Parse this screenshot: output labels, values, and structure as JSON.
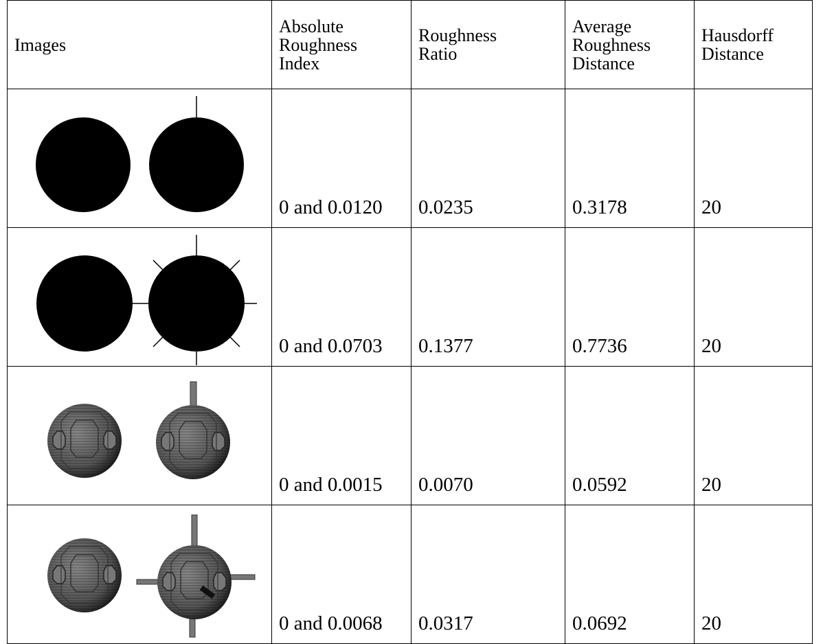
{
  "table": {
    "header": [
      [
        "Images"
      ],
      [
        "Absolute",
        "Roughness",
        "Index"
      ],
      [
        "Roughness",
        "Ratio"
      ],
      [
        "Average",
        "Roughness",
        "Distance"
      ],
      [
        "Hausdorff",
        "Distance"
      ]
    ],
    "rows": [
      [
        "0 and 0.0120",
        "0.0235",
        "0.3178",
        "20"
      ],
      [
        "0 and 0.0703",
        "0.1377",
        "0.7736",
        "20"
      ],
      [
        "0 and 0.0015",
        "0.0070",
        "0.0592",
        "20"
      ],
      [
        "0 and 0.0068",
        "0.0317",
        "0.0692",
        "20"
      ]
    ]
  }
}
